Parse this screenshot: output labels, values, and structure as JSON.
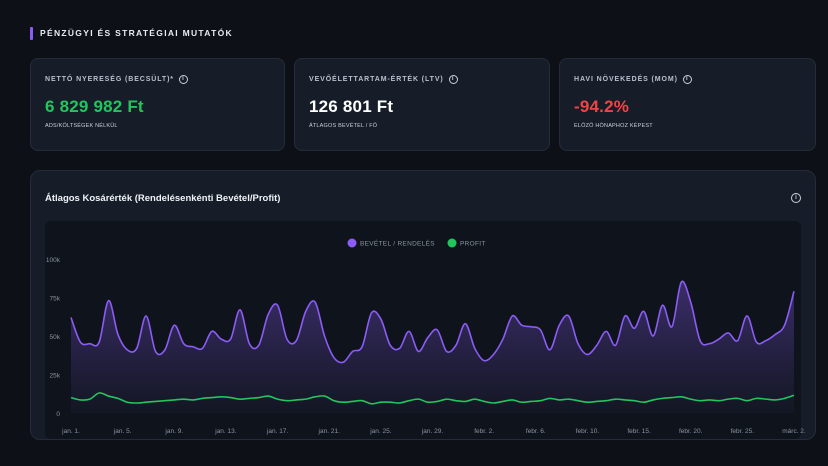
{
  "section": {
    "title": "PÉNZÜGYI ÉS STRATÉGIAI MUTATÓK"
  },
  "kpis": [
    {
      "label": "NETTÓ NYERESÉG (BECSÜLT)*",
      "value": "6 829 982 Ft",
      "sub": "ADS/KÖLTSÉGEK NÉLKÜL",
      "value_color": "#22c55e"
    },
    {
      "label": "VEVŐÉLETTARTAM-ÉRTÉK (LTV)",
      "value": "126 801 Ft",
      "sub": "ÁTLAGOS BEVÉTEL / FŐ",
      "value_color": "#ffffff"
    },
    {
      "label": "HAVI NÖVEKEDÉS (MOM)",
      "value": "-94.2%",
      "sub": "ELŐZŐ HÓNAPHOZ KÉPEST",
      "value_color": "#ef4444"
    }
  ],
  "chart_card": {
    "title": "Átlagos Kosárérték (Rendelésenkénti Bevétel/Profit)"
  },
  "chart_data": {
    "type": "line",
    "title": "",
    "y_ticks": [
      "0",
      "25k",
      "50k",
      "75k",
      "100k"
    ],
    "ylim": [
      0,
      100000
    ],
    "x_tick_labels": [
      "jan. 1.",
      "jan. 5.",
      "jan. 9.",
      "jan. 13.",
      "jan. 17.",
      "jan. 21.",
      "jan. 25.",
      "jan. 29.",
      "febr. 2.",
      "febr. 6.",
      "febr. 10.",
      "febr. 15.",
      "febr. 20.",
      "febr. 25.",
      "márc. 2."
    ],
    "grid": false,
    "legend_position": "top-center",
    "series": [
      {
        "name": "BEVÉTEL / RENDELÉS",
        "color": "#8b5cf6",
        "area": true,
        "values": [
          62000,
          46000,
          45000,
          46000,
          73000,
          51000,
          41000,
          42000,
          63000,
          40000,
          41000,
          57000,
          45000,
          43000,
          42000,
          53000,
          48000,
          48000,
          67000,
          45000,
          44000,
          64000,
          70000,
          48000,
          47000,
          66000,
          72000,
          50000,
          36000,
          33000,
          40000,
          43000,
          65000,
          61000,
          44000,
          42000,
          53000,
          40000,
          49000,
          54000,
          40000,
          44000,
          58000,
          42000,
          34000,
          38000,
          48000,
          63000,
          57000,
          56000,
          54000,
          41000,
          57000,
          63000,
          45000,
          38000,
          44000,
          53000,
          44000,
          63000,
          55000,
          66000,
          50000,
          70000,
          56000,
          85000,
          72000,
          47000,
          45000,
          48000,
          52000,
          47000,
          63000,
          46000,
          47000,
          51000,
          57000,
          79000
        ]
      },
      {
        "name": "PROFIT",
        "color": "#22c55e",
        "area": false,
        "values": [
          10000,
          8500,
          9000,
          13000,
          11000,
          9500,
          7000,
          6500,
          7000,
          7500,
          8000,
          8500,
          9000,
          8500,
          9500,
          10000,
          10500,
          10000,
          9000,
          9500,
          10000,
          11000,
          9000,
          8000,
          8500,
          9000,
          10500,
          11000,
          8000,
          7000,
          7500,
          8000,
          6000,
          7000,
          7000,
          6500,
          8000,
          9000,
          7000,
          7500,
          9000,
          8000,
          7500,
          9000,
          7500,
          6500,
          7500,
          8500,
          7000,
          7500,
          8000,
          9500,
          8500,
          9000,
          8000,
          7000,
          7500,
          8000,
          9000,
          8500,
          8000,
          7000,
          8500,
          9500,
          10000,
          10500,
          9000,
          8000,
          8500,
          8000,
          9000,
          9500,
          8000,
          9500,
          9000,
          8500,
          9500,
          11500
        ]
      }
    ]
  }
}
